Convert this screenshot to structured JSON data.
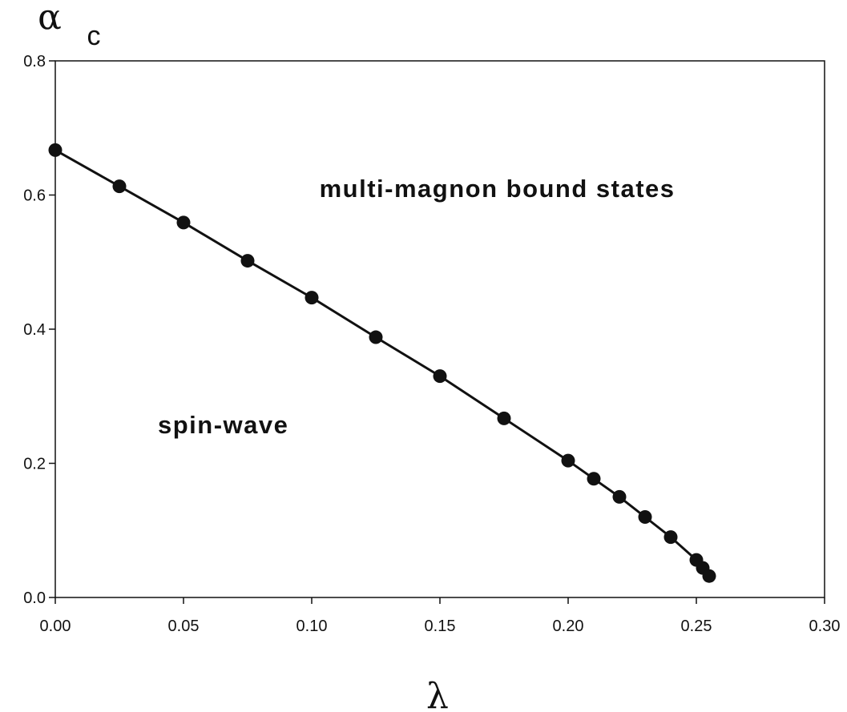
{
  "chart_data": {
    "type": "line",
    "title": "",
    "xlabel": "λ",
    "ylabel": "α",
    "ylabel_subscript": "c",
    "xlim": [
      0.0,
      0.3
    ],
    "ylim": [
      0.0,
      0.8
    ],
    "grid": false,
    "x_ticks": [
      "0.00",
      "0.05",
      "0.10",
      "0.15",
      "0.20",
      "0.25",
      "0.30"
    ],
    "y_ticks": [
      "0.0",
      "0.2",
      "0.4",
      "0.6",
      "0.8"
    ],
    "series": [
      {
        "x": [
          0.0,
          0.025,
          0.05,
          0.075,
          0.1,
          0.125,
          0.15,
          0.175,
          0.2,
          0.21,
          0.22,
          0.23,
          0.24,
          0.25,
          0.2525,
          0.255
        ],
        "y": [
          0.667,
          0.613,
          0.559,
          0.502,
          0.447,
          0.388,
          0.33,
          0.267,
          0.204,
          0.177,
          0.15,
          0.12,
          0.09,
          0.056,
          0.044,
          0.032
        ],
        "marker": "filled-circle",
        "color": "#111111"
      }
    ],
    "annotations": [
      {
        "text": "multi-magnon bound states",
        "x": 0.103,
        "y": 0.597
      },
      {
        "text": "spin-wave",
        "x": 0.04,
        "y": 0.245
      }
    ]
  }
}
